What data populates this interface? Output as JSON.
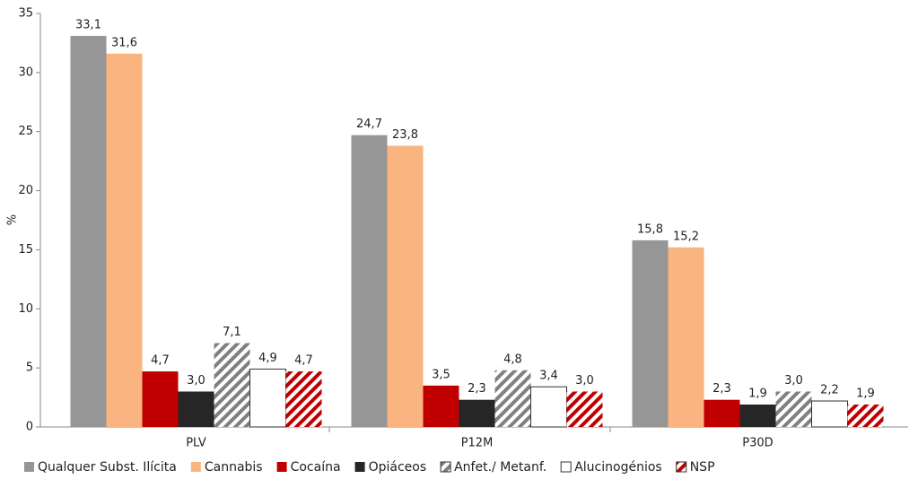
{
  "chart_data": {
    "type": "bar",
    "y_label": "%",
    "categories": [
      "PLV",
      "P12M",
      "P30D"
    ],
    "series": [
      {
        "name": "Qualquer Subst. Ilícita",
        "color": "#969696",
        "values": [
          33.1,
          24.7,
          15.8
        ],
        "value_labels": [
          "33,1",
          "24,7",
          "15,8"
        ]
      },
      {
        "name": "Cannabis",
        "color": "#fab47f",
        "values": [
          31.6,
          23.8,
          15.2
        ],
        "value_labels": [
          "31,6",
          "23,8",
          "15,2"
        ]
      },
      {
        "name": "Cocaína",
        "color": "#c00000",
        "values": [
          4.7,
          3.5,
          2.3
        ],
        "value_labels": [
          "4,7",
          "3,5",
          "2,3"
        ]
      },
      {
        "name": "Opiáceos",
        "color": "#262626",
        "values": [
          3.0,
          2.3,
          1.9
        ],
        "value_labels": [
          "3,0",
          "2,3",
          "1,9"
        ]
      },
      {
        "name": "Anfet./ Metanf.",
        "color": "#808080",
        "pattern": "hatch",
        "values": [
          7.1,
          4.8,
          3.0
        ],
        "value_labels": [
          "7,1",
          "4,8",
          "3,0"
        ]
      },
      {
        "name": "Alucinogénios",
        "color": "#ffffff",
        "values": [
          4.9,
          3.4,
          2.2
        ],
        "value_labels": [
          "4,9",
          "3,4",
          "2,2"
        ]
      },
      {
        "name": "NSP",
        "color": "#c00000",
        "pattern": "hatch",
        "values": [
          4.7,
          3.0,
          1.9
        ],
        "value_labels": [
          "4,7",
          "3,0",
          "1,9"
        ]
      }
    ],
    "ylim": [
      0,
      35
    ],
    "yticks": [
      0,
      5,
      10,
      15,
      20,
      25,
      30,
      35
    ],
    "legend": "bottom"
  }
}
